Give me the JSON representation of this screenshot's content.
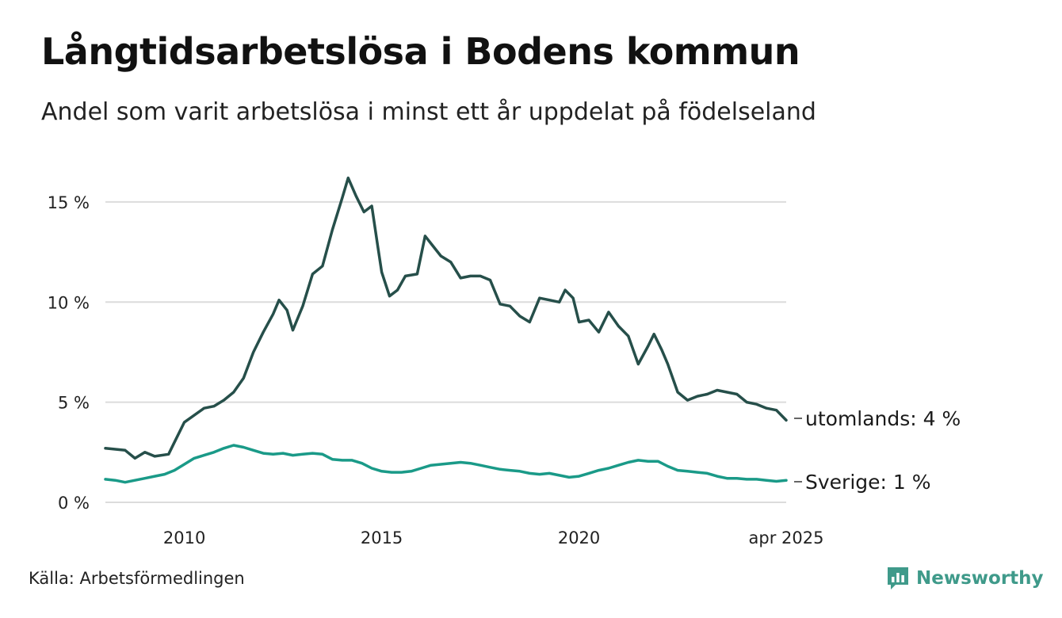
{
  "title": "Långtidsarbetslösa i Bodens kommun",
  "subtitle": "Andel som varit arbetslösa i minst ett år uppdelat på födelseland",
  "source": "Källa: Arbetsförmedlingen",
  "brand": {
    "name": "Newsworthy",
    "icon": "newsworthy-logo-icon",
    "color": "#3f9a8a"
  },
  "chart_data": {
    "type": "line",
    "ylim": [
      0,
      16.5
    ],
    "yticks": [
      0,
      5,
      10,
      15
    ],
    "ytick_labels": [
      "0 %",
      "5 %",
      "10 %",
      "15 %"
    ],
    "xlim": [
      2008.0,
      2025.25
    ],
    "xticks": [
      2010,
      2015,
      2020,
      2025.25
    ],
    "xtick_labels": [
      "2010",
      "2015",
      "2020",
      "apr 2025"
    ],
    "grid": "horizontal",
    "series": [
      {
        "name": "utomlands",
        "end_label": "utomlands: 4 %",
        "color": "#264f4a",
        "points": [
          [
            2008.0,
            2.7
          ],
          [
            2008.5,
            2.6
          ],
          [
            2008.75,
            2.2
          ],
          [
            2009.0,
            2.5
          ],
          [
            2009.25,
            2.3
          ],
          [
            2009.6,
            2.4
          ],
          [
            2009.75,
            3.0
          ],
          [
            2010.0,
            4.0
          ],
          [
            2010.5,
            4.7
          ],
          [
            2010.75,
            4.8
          ],
          [
            2011.0,
            5.1
          ],
          [
            2011.25,
            5.5
          ],
          [
            2011.5,
            6.2
          ],
          [
            2011.75,
            7.5
          ],
          [
            2012.0,
            8.5
          ],
          [
            2012.25,
            9.4
          ],
          [
            2012.4,
            10.1
          ],
          [
            2012.6,
            9.6
          ],
          [
            2012.75,
            8.6
          ],
          [
            2013.0,
            9.8
          ],
          [
            2013.25,
            11.4
          ],
          [
            2013.5,
            11.8
          ],
          [
            2013.75,
            13.6
          ],
          [
            2014.0,
            15.2
          ],
          [
            2014.15,
            16.2
          ],
          [
            2014.35,
            15.3
          ],
          [
            2014.55,
            14.5
          ],
          [
            2014.75,
            14.8
          ],
          [
            2014.9,
            12.8
          ],
          [
            2015.0,
            11.5
          ],
          [
            2015.2,
            10.3
          ],
          [
            2015.4,
            10.6
          ],
          [
            2015.6,
            11.3
          ],
          [
            2015.9,
            11.4
          ],
          [
            2016.1,
            13.3
          ],
          [
            2016.3,
            12.8
          ],
          [
            2016.5,
            12.3
          ],
          [
            2016.75,
            12.0
          ],
          [
            2017.0,
            11.2
          ],
          [
            2017.25,
            11.3
          ],
          [
            2017.5,
            11.3
          ],
          [
            2017.75,
            11.1
          ],
          [
            2018.0,
            9.9
          ],
          [
            2018.25,
            9.8
          ],
          [
            2018.5,
            9.3
          ],
          [
            2018.75,
            9.0
          ],
          [
            2019.0,
            10.2
          ],
          [
            2019.25,
            10.1
          ],
          [
            2019.5,
            10.0
          ],
          [
            2019.65,
            10.6
          ],
          [
            2019.85,
            10.2
          ],
          [
            2020.0,
            9.0
          ],
          [
            2020.25,
            9.1
          ],
          [
            2020.5,
            8.5
          ],
          [
            2020.75,
            9.5
          ],
          [
            2021.0,
            8.8
          ],
          [
            2021.25,
            8.3
          ],
          [
            2021.5,
            6.9
          ],
          [
            2021.75,
            7.8
          ],
          [
            2021.9,
            8.4
          ],
          [
            2022.1,
            7.6
          ],
          [
            2022.25,
            6.9
          ],
          [
            2022.5,
            5.5
          ],
          [
            2022.75,
            5.1
          ],
          [
            2023.0,
            5.3
          ],
          [
            2023.25,
            5.4
          ],
          [
            2023.5,
            5.6
          ],
          [
            2023.75,
            5.5
          ],
          [
            2024.0,
            5.4
          ],
          [
            2024.25,
            5.0
          ],
          [
            2024.5,
            4.9
          ],
          [
            2024.75,
            4.7
          ],
          [
            2025.0,
            4.6
          ],
          [
            2025.25,
            4.1
          ]
        ]
      },
      {
        "name": "Sverige",
        "end_label": "Sverige: 1 %",
        "color": "#1a9a88",
        "points": [
          [
            2008.0,
            1.15
          ],
          [
            2008.25,
            1.1
          ],
          [
            2008.5,
            1.0
          ],
          [
            2008.75,
            1.1
          ],
          [
            2009.0,
            1.2
          ],
          [
            2009.25,
            1.3
          ],
          [
            2009.5,
            1.4
          ],
          [
            2009.75,
            1.6
          ],
          [
            2010.0,
            1.9
          ],
          [
            2010.25,
            2.2
          ],
          [
            2010.5,
            2.35
          ],
          [
            2010.75,
            2.5
          ],
          [
            2011.0,
            2.7
          ],
          [
            2011.25,
            2.85
          ],
          [
            2011.5,
            2.75
          ],
          [
            2011.75,
            2.6
          ],
          [
            2012.0,
            2.45
          ],
          [
            2012.25,
            2.4
          ],
          [
            2012.5,
            2.45
          ],
          [
            2012.75,
            2.35
          ],
          [
            2013.0,
            2.4
          ],
          [
            2013.25,
            2.45
          ],
          [
            2013.5,
            2.4
          ],
          [
            2013.75,
            2.15
          ],
          [
            2014.0,
            2.1
          ],
          [
            2014.25,
            2.1
          ],
          [
            2014.5,
            1.95
          ],
          [
            2014.75,
            1.7
          ],
          [
            2015.0,
            1.55
          ],
          [
            2015.25,
            1.5
          ],
          [
            2015.5,
            1.5
          ],
          [
            2015.75,
            1.55
          ],
          [
            2016.0,
            1.7
          ],
          [
            2016.25,
            1.85
          ],
          [
            2016.5,
            1.9
          ],
          [
            2016.75,
            1.95
          ],
          [
            2017.0,
            2.0
          ],
          [
            2017.25,
            1.95
          ],
          [
            2017.5,
            1.85
          ],
          [
            2017.75,
            1.75
          ],
          [
            2018.0,
            1.65
          ],
          [
            2018.25,
            1.6
          ],
          [
            2018.5,
            1.55
          ],
          [
            2018.75,
            1.45
          ],
          [
            2019.0,
            1.4
          ],
          [
            2019.25,
            1.45
          ],
          [
            2019.5,
            1.35
          ],
          [
            2019.75,
            1.25
          ],
          [
            2020.0,
            1.3
          ],
          [
            2020.25,
            1.45
          ],
          [
            2020.5,
            1.6
          ],
          [
            2020.75,
            1.7
          ],
          [
            2021.0,
            1.85
          ],
          [
            2021.25,
            2.0
          ],
          [
            2021.5,
            2.1
          ],
          [
            2021.75,
            2.05
          ],
          [
            2022.0,
            2.05
          ],
          [
            2022.25,
            1.8
          ],
          [
            2022.5,
            1.6
          ],
          [
            2022.75,
            1.55
          ],
          [
            2023.0,
            1.5
          ],
          [
            2023.25,
            1.45
          ],
          [
            2023.5,
            1.3
          ],
          [
            2023.75,
            1.2
          ],
          [
            2024.0,
            1.2
          ],
          [
            2024.25,
            1.15
          ],
          [
            2024.5,
            1.15
          ],
          [
            2024.75,
            1.1
          ],
          [
            2025.0,
            1.05
          ],
          [
            2025.25,
            1.1
          ]
        ]
      }
    ]
  }
}
